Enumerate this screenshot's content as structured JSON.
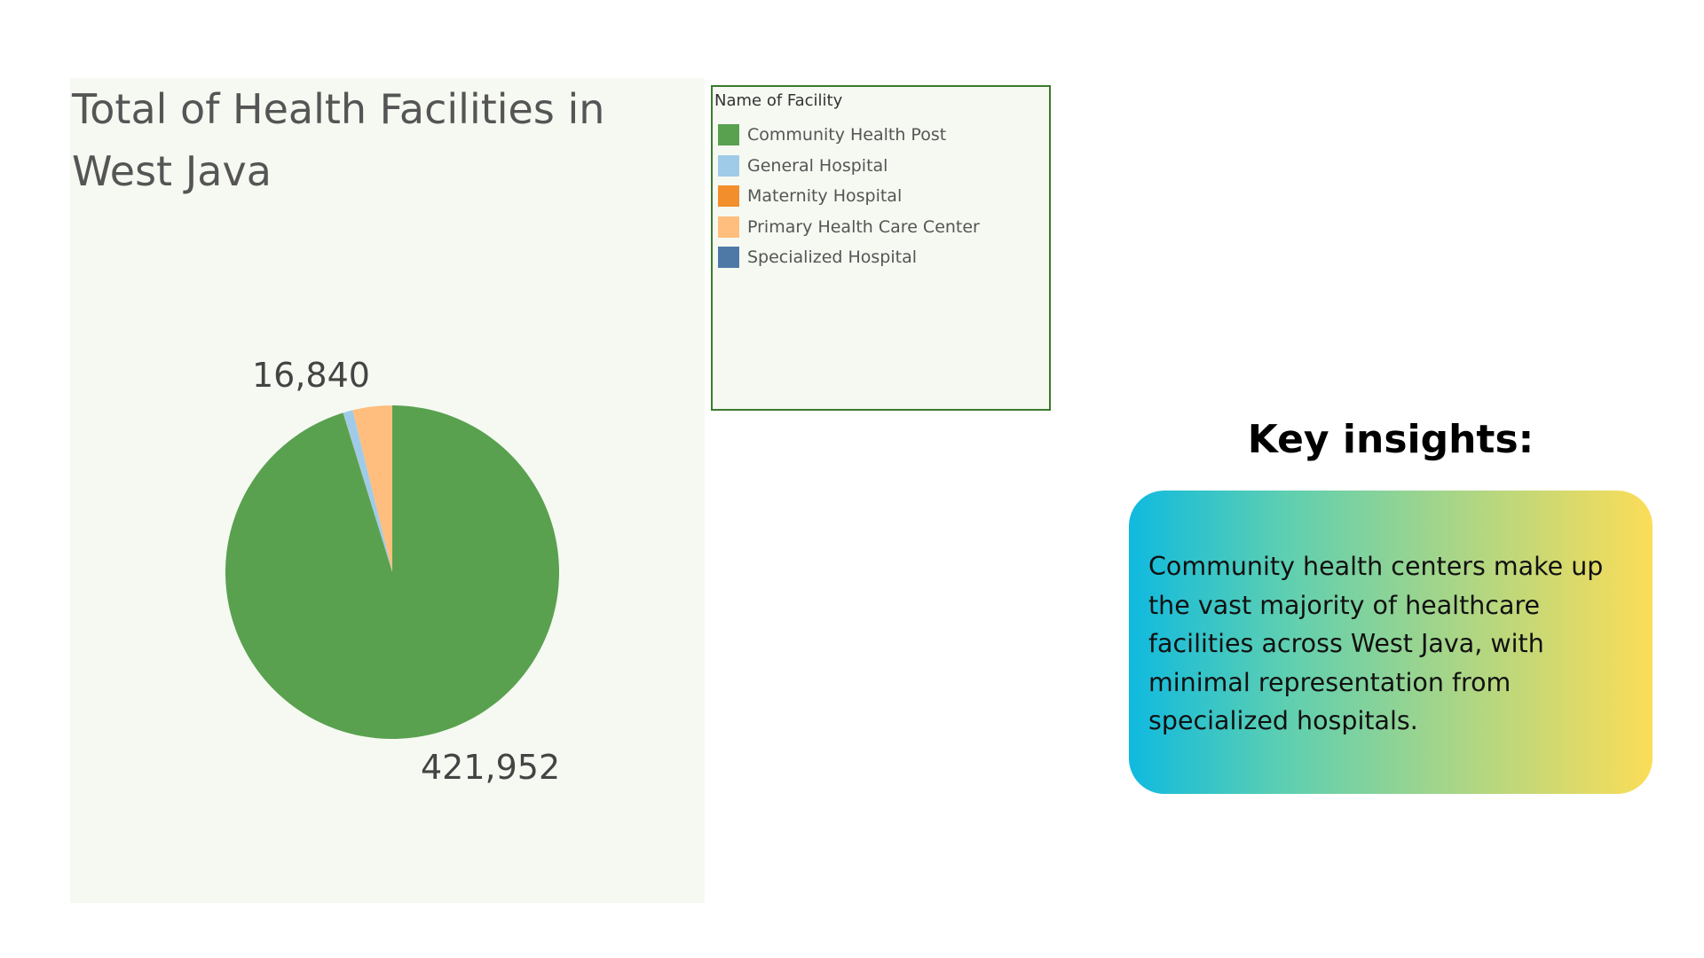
{
  "chart_data": {
    "type": "pie",
    "title": "Total of Health Facilities in West Java",
    "legend_title": "Name of Facility",
    "legend_position": "right",
    "categories": [
      "Community Health Post",
      "General Hospital",
      "Maternity Hospital",
      "Primary Health Care Center",
      "Specialized Hospital"
    ],
    "colors": [
      "#59a14f",
      "#a0cbe8",
      "#f28e2b",
      "#ffbe7d",
      "#4e79a7"
    ],
    "values": [
      421952,
      4200,
      80,
      16840,
      60
    ],
    "data_labels": [
      "421,952",
      "",
      "",
      "16,840",
      ""
    ]
  },
  "insights": {
    "heading": "Key insights:",
    "text": "Community health centers make up the vast majority of healthcare facilities across West Java, with minimal representation from specialized hospitals."
  }
}
